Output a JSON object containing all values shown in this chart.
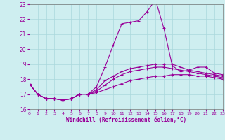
{
  "line1_x": [
    0,
    1,
    2,
    3,
    4,
    5,
    6,
    7,
    8,
    9,
    10,
    11,
    12,
    13,
    14,
    15,
    16,
    17,
    18,
    19,
    20,
    21,
    22,
    23
  ],
  "line1_y": [
    17.7,
    17.0,
    16.7,
    16.7,
    16.6,
    16.7,
    17.0,
    17.0,
    17.5,
    18.8,
    20.3,
    21.7,
    21.8,
    21.9,
    22.5,
    23.3,
    21.4,
    18.9,
    18.5,
    18.6,
    18.8,
    18.8,
    18.4,
    18.3
  ],
  "line2_x": [
    0,
    1,
    2,
    3,
    4,
    5,
    6,
    7,
    8,
    9,
    10,
    11,
    12,
    13,
    14,
    15,
    16,
    17,
    18,
    19,
    20,
    21,
    22,
    23
  ],
  "line2_y": [
    17.7,
    17.0,
    16.7,
    16.7,
    16.6,
    16.7,
    17.0,
    17.0,
    17.3,
    17.9,
    18.2,
    18.5,
    18.7,
    18.8,
    18.9,
    19.0,
    19.0,
    19.0,
    18.8,
    18.6,
    18.5,
    18.4,
    18.3,
    18.2
  ],
  "line3_x": [
    0,
    1,
    2,
    3,
    4,
    5,
    6,
    7,
    8,
    9,
    10,
    11,
    12,
    13,
    14,
    15,
    16,
    17,
    18,
    19,
    20,
    21,
    22,
    23
  ],
  "line3_y": [
    17.7,
    17.0,
    16.7,
    16.7,
    16.6,
    16.7,
    17.0,
    17.0,
    17.1,
    17.3,
    17.5,
    17.7,
    17.9,
    18.0,
    18.1,
    18.2,
    18.2,
    18.3,
    18.3,
    18.3,
    18.2,
    18.2,
    18.1,
    18.0
  ],
  "line4_x": [
    0,
    1,
    2,
    3,
    4,
    5,
    6,
    7,
    8,
    9,
    10,
    11,
    12,
    13,
    14,
    15,
    16,
    17,
    18,
    19,
    20,
    21,
    22,
    23
  ],
  "line4_y": [
    17.7,
    17.0,
    16.7,
    16.7,
    16.6,
    16.7,
    17.0,
    17.0,
    17.2,
    17.6,
    18.0,
    18.3,
    18.5,
    18.6,
    18.7,
    18.8,
    18.8,
    18.7,
    18.6,
    18.5,
    18.4,
    18.3,
    18.2,
    18.1
  ],
  "color": "#990099",
  "bg_color": "#ceeef0",
  "grid_color": "#aad8dc",
  "xlabel": "Windchill (Refroidissement éolien,°C)",
  "xlim": [
    0,
    23
  ],
  "ylim": [
    16,
    23
  ],
  "yticks": [
    16,
    17,
    18,
    19,
    20,
    21,
    22,
    23
  ],
  "xticks": [
    0,
    1,
    2,
    3,
    4,
    5,
    6,
    7,
    8,
    9,
    10,
    11,
    12,
    13,
    14,
    15,
    16,
    17,
    18,
    19,
    20,
    21,
    22,
    23
  ]
}
